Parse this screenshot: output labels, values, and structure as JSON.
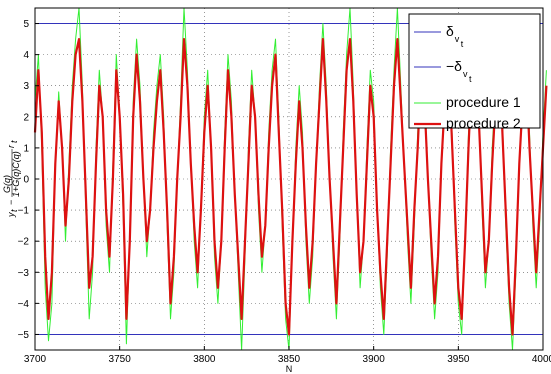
{
  "chart_data": {
    "type": "line",
    "title": "",
    "xlabel": "N",
    "ylabel_tex": "y_t - G(q)/(1+G(q)C(q)) r_t",
    "xlim": [
      3700,
      4000
    ],
    "ylim": [
      -5.5,
      5.5
    ],
    "x_ticks": [
      "3700",
      "3750",
      "3800",
      "3850",
      "3900",
      "3950",
      "4000"
    ],
    "y_ticks": [
      "5",
      "4",
      "3",
      "2",
      "1",
      "0",
      "-1",
      "-2",
      "-3",
      "-4",
      "-5"
    ],
    "grid": true,
    "legend_position": "top-right",
    "legend": [
      {
        "label": "δ",
        "sub": "v",
        "subsub": "t",
        "color": "#3333bb"
      },
      {
        "label": "−δ",
        "sub": "v",
        "subsub": "t",
        "color": "#3333bb"
      },
      {
        "label": "procedure 1",
        "color": "#33ee33"
      },
      {
        "label": "procedure 2",
        "color": "#dd1111"
      }
    ],
    "series": [
      {
        "name": "δ_vt",
        "color": "#3333bb",
        "x": [
          3700,
          4000
        ],
        "y": [
          5,
          5
        ]
      },
      {
        "name": "−δ_vt",
        "color": "#3333bb",
        "x": [
          3700,
          4000
        ],
        "y": [
          -5,
          -5
        ]
      },
      {
        "name": "procedure 1",
        "color": "#33ee33",
        "x_start": 3700,
        "x_step": 2,
        "y": [
          2.5,
          4.0,
          1.0,
          -3.5,
          -5.2,
          -4.0,
          0.5,
          2.8,
          1.0,
          -2.0,
          0.5,
          3.0,
          4.5,
          5.5,
          3.0,
          -1.0,
          -4.5,
          -3.0,
          1.0,
          3.5,
          2.0,
          -1.5,
          -3.0,
          0.5,
          4.0,
          2.0,
          -1.0,
          -5.3,
          -2.0,
          2.5,
          4.5,
          3.0,
          0.0,
          -2.5,
          -1.0,
          1.5,
          3.0,
          4.0,
          2.0,
          -1.5,
          -4.5,
          -3.0,
          0.0,
          2.5,
          5.5,
          3.5,
          0.5,
          -2.0,
          -3.5,
          -1.0,
          2.0,
          3.5,
          1.0,
          -2.5,
          -4.0,
          -2.0,
          1.5,
          4.0,
          2.5,
          -0.5,
          -3.0,
          -5.5,
          -2.5,
          1.0,
          3.5,
          2.0,
          -1.0,
          -3.0,
          -1.5,
          1.5,
          3.5,
          4.5,
          2.0,
          -1.5,
          -4.5,
          -5.5,
          -2.0,
          1.0,
          3.0,
          1.5,
          -2.0,
          -4.0,
          -2.5,
          0.5,
          3.0,
          5.0,
          3.0,
          0.0,
          -2.5,
          -4.5,
          -2.0,
          1.5,
          4.0,
          5.5,
          3.0,
          -0.5,
          -3.5,
          -2.0,
          1.0,
          3.5,
          2.5,
          -1.0,
          -3.5,
          -5.0,
          -2.5,
          1.0,
          3.5,
          5.5,
          3.0,
          0.5,
          -2.0,
          -4.0,
          -1.5,
          1.5,
          4.0,
          3.0,
          0.0,
          -2.5,
          -4.5,
          -3.0,
          0.5,
          3.0,
          4.5,
          2.0,
          -1.5,
          -4.0,
          -5.0,
          -2.0,
          1.5,
          4.0,
          5.0,
          2.5,
          -1.0,
          -3.5,
          -2.0,
          1.0,
          3.0,
          4.5,
          2.0,
          -1.5,
          -4.0,
          -5.5,
          -3.0,
          0.5,
          3.0,
          4.0,
          1.5,
          -1.5,
          -3.5,
          -1.5,
          1.5,
          3.5
        ]
      },
      {
        "name": "procedure 2",
        "color": "#dd1111",
        "x_start": 3700,
        "x_step": 2,
        "y": [
          1.5,
          3.5,
          1.5,
          -2.5,
          -4.5,
          -3.0,
          0.5,
          2.5,
          1.0,
          -1.5,
          0.0,
          2.5,
          4.0,
          4.5,
          2.5,
          -0.5,
          -3.5,
          -2.5,
          0.5,
          3.0,
          2.0,
          -1.0,
          -2.5,
          0.0,
          3.5,
          2.0,
          -0.5,
          -4.5,
          -2.0,
          2.0,
          4.0,
          2.5,
          0.0,
          -2.0,
          -1.0,
          1.0,
          2.5,
          3.5,
          1.5,
          -1.0,
          -4.0,
          -2.5,
          0.0,
          2.0,
          4.5,
          3.0,
          0.5,
          -1.5,
          -3.0,
          -1.0,
          1.5,
          3.0,
          1.0,
          -2.0,
          -3.5,
          -2.0,
          1.0,
          3.5,
          2.0,
          -0.5,
          -2.5,
          -4.5,
          -2.0,
          0.5,
          3.0,
          2.0,
          -0.5,
          -2.5,
          -1.5,
          1.0,
          3.0,
          4.0,
          1.5,
          -1.0,
          -4.0,
          -5.0,
          -2.0,
          0.5,
          2.5,
          1.0,
          -1.5,
          -3.5,
          -2.0,
          0.5,
          2.5,
          4.5,
          2.5,
          0.0,
          -2.0,
          -4.0,
          -1.5,
          1.0,
          3.5,
          4.5,
          2.5,
          -0.5,
          -3.0,
          -2.0,
          0.5,
          3.0,
          2.0,
          -1.0,
          -3.0,
          -4.5,
          -2.0,
          0.5,
          3.0,
          4.5,
          2.5,
          0.5,
          -1.5,
          -3.5,
          -1.0,
          1.0,
          3.5,
          2.5,
          0.0,
          -2.0,
          -4.0,
          -2.5,
          0.5,
          2.5,
          4.0,
          1.5,
          -1.0,
          -3.5,
          -4.5,
          -2.0,
          1.0,
          3.5,
          4.5,
          2.0,
          -0.5,
          -3.0,
          -2.0,
          0.5,
          2.5,
          4.0,
          1.5,
          -1.0,
          -3.5,
          -5.0,
          -2.5,
          0.5,
          2.5,
          3.5,
          1.0,
          -1.0,
          -3.0,
          -1.0,
          1.0,
          3.0
        ]
      }
    ]
  }
}
